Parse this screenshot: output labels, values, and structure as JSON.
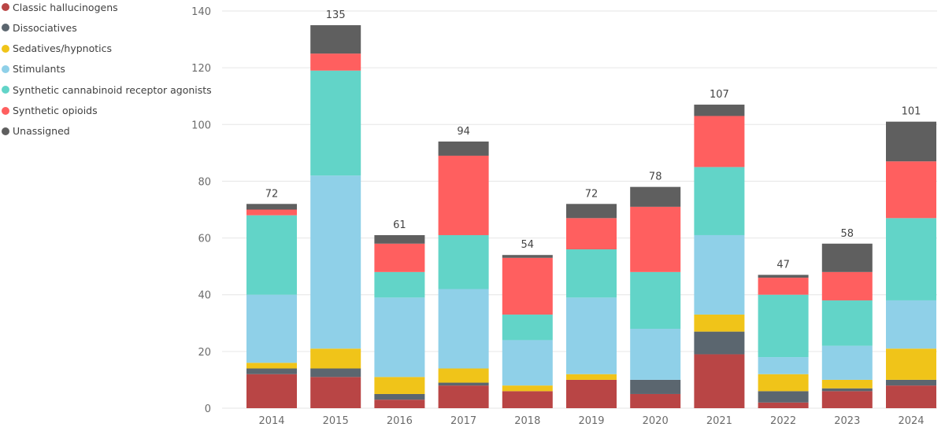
{
  "chart_data": {
    "type": "bar",
    "stacked": true,
    "categories": [
      "2014",
      "2015",
      "2016",
      "2017",
      "2018",
      "2019",
      "2020",
      "2021",
      "2022",
      "2023",
      "2024"
    ],
    "totals": [
      72,
      135,
      61,
      94,
      54,
      72,
      78,
      107,
      47,
      58,
      101
    ],
    "ylim": [
      0,
      140
    ],
    "yticks": [
      0,
      20,
      40,
      60,
      80,
      100,
      120,
      140
    ],
    "grid": true,
    "legend_position": "top-left",
    "series": [
      {
        "name": "Classic hallucinogens",
        "color": "#b94545",
        "values": [
          12,
          11,
          3,
          8,
          6,
          10,
          5,
          19,
          2,
          6,
          8
        ]
      },
      {
        "name": "Dissociatives",
        "color": "#5b666f",
        "values": [
          2,
          3,
          2,
          1,
          0,
          0,
          5,
          8,
          4,
          1,
          2
        ]
      },
      {
        "name": "Sedatives/hypnotics",
        "color": "#f0c419",
        "values": [
          2,
          7,
          6,
          5,
          2,
          2,
          0,
          6,
          6,
          3,
          11
        ]
      },
      {
        "name": "Stimulants",
        "color": "#8fd0e8",
        "values": [
          24,
          61,
          28,
          28,
          16,
          27,
          18,
          28,
          6,
          12,
          17
        ]
      },
      {
        "name": "Synthetic cannabinoid receptor agonists",
        "color": "#62d4c8",
        "values": [
          28,
          37,
          9,
          19,
          9,
          17,
          20,
          24,
          22,
          16,
          29
        ]
      },
      {
        "name": "Synthetic opioids",
        "color": "#ff5f5f",
        "values": [
          2,
          6,
          10,
          28,
          20,
          11,
          23,
          18,
          6,
          10,
          20
        ]
      },
      {
        "name": "Unassigned",
        "color": "#5f5f5f",
        "values": [
          2,
          10,
          3,
          5,
          1,
          5,
          7,
          4,
          1,
          10,
          14
        ]
      }
    ]
  }
}
